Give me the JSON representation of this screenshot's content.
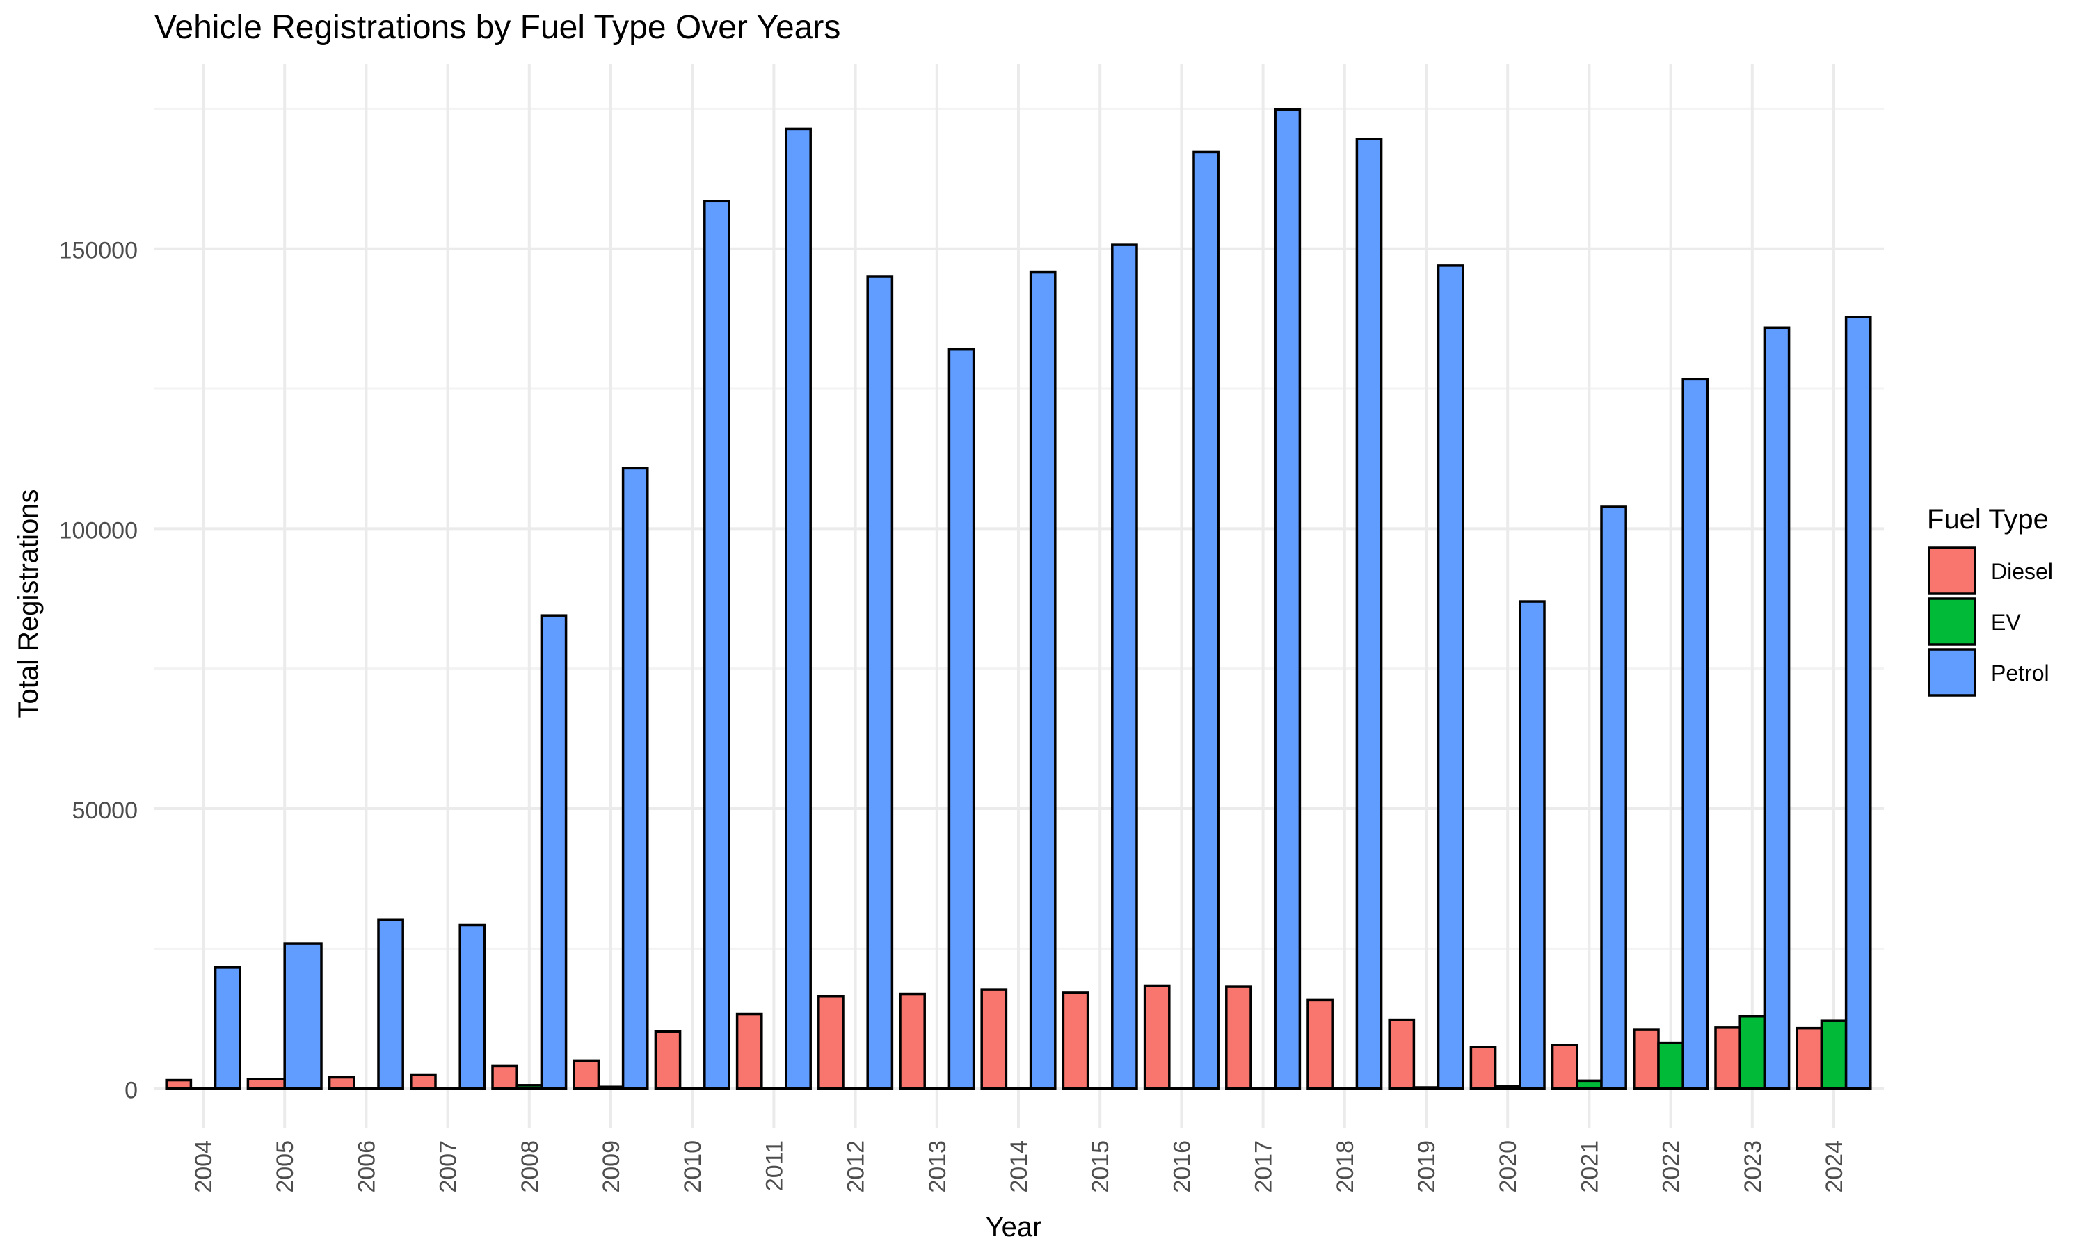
{
  "chart_data": {
    "type": "bar",
    "title": "Vehicle Registrations by Fuel Type Over Years",
    "xlabel": "Year",
    "ylabel": "Total Registrations",
    "categories": [
      "2004",
      "2005",
      "2006",
      "2007",
      "2008",
      "2009",
      "2010",
      "2011",
      "2012",
      "2013",
      "2014",
      "2015",
      "2016",
      "2017",
      "2018",
      "2019",
      "2020",
      "2021",
      "2022",
      "2023",
      "2024"
    ],
    "series": [
      {
        "name": "Diesel",
        "color": "#F8766D",
        "values": [
          1500,
          1700,
          2000,
          2500,
          4000,
          5000,
          10200,
          13300,
          16500,
          16900,
          17700,
          17100,
          18400,
          18200,
          15800,
          12300,
          7400,
          7800,
          10500,
          10900,
          10800
        ]
      },
      {
        "name": "EV",
        "color": "#00BA38",
        "values": [
          0,
          null,
          0,
          0,
          600,
          300,
          0,
          0,
          0,
          0,
          0,
          0,
          0,
          0,
          0,
          200,
          400,
          1400,
          8200,
          12900,
          12100
        ]
      },
      {
        "name": "Petrol",
        "color": "#619CFF",
        "values": [
          21700,
          25900,
          30100,
          29200,
          84500,
          110800,
          158500,
          171400,
          145000,
          132000,
          145800,
          150700,
          167300,
          174900,
          169600,
          147000,
          87000,
          103900,
          126700,
          135900,
          137800
        ]
      }
    ],
    "yticks": [
      "0",
      "50000",
      "100000",
      "150000"
    ],
    "ylim": [
      -7000,
      183000
    ],
    "grid": true,
    "legend": {
      "title": "Fuel Type",
      "position": "right"
    }
  }
}
